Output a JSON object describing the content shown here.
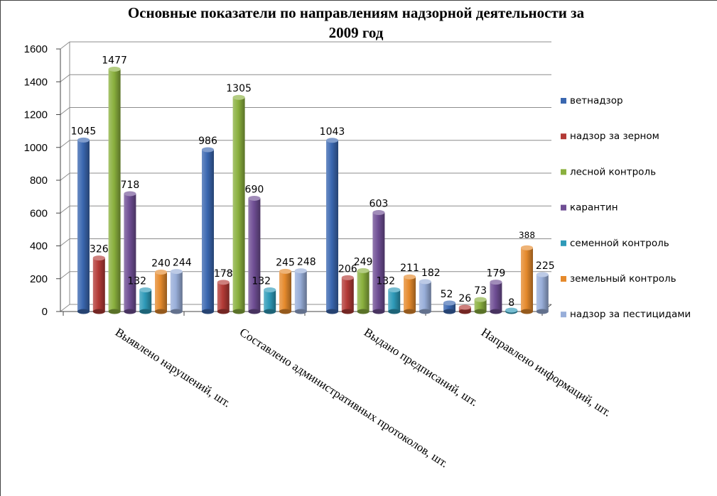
{
  "chart_data": {
    "type": "bar",
    "title_line1": "Основные показатели по направлениям надзорной деятельности за",
    "title_line2": "2009 год",
    "categories": [
      "Выявлено нарушений, шт.",
      "Составлено административных протоколов, шт.",
      "Выдано предписаний, шт.",
      "Направлено информаций, шт."
    ],
    "ylim": [
      0,
      1600
    ],
    "yticks": [
      0,
      200,
      400,
      600,
      800,
      1000,
      1200,
      1400,
      1600
    ],
    "grid": true,
    "legend_position": "right",
    "series": [
      {
        "name": "ветнадзор",
        "color": "#3A67B0",
        "values": [
          1045,
          986,
          1043,
          52
        ]
      },
      {
        "name": "надзор за зерном",
        "color": "#B33A36",
        "values": [
          326,
          178,
          206,
          26
        ]
      },
      {
        "name": "лесной контроль",
        "color": "#8AB03E",
        "values": [
          1477,
          1305,
          249,
          73
        ]
      },
      {
        "name": "карантин",
        "color": "#6F4E94",
        "values": [
          718,
          690,
          603,
          179
        ]
      },
      {
        "name": "семенной контроль",
        "color": "#2E9AB8",
        "values": [
          132,
          132,
          132,
          8
        ]
      },
      {
        "name": "земельный контроль",
        "color": "#E58A2C",
        "values": [
          240,
          245,
          211,
          388
        ]
      },
      {
        "name": "надзор за пестицидами",
        "color": "#98AED9",
        "values": [
          244,
          248,
          182,
          225
        ]
      }
    ]
  }
}
